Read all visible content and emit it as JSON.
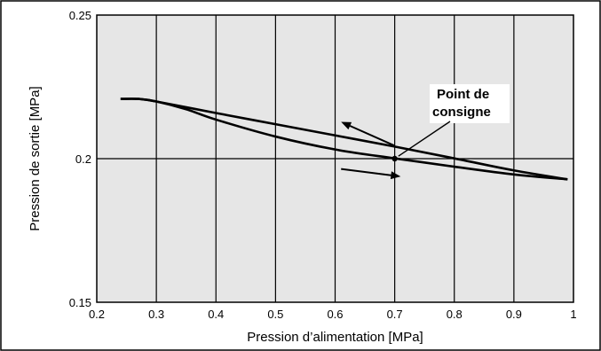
{
  "chart_data": {
    "type": "line",
    "xlabel": "Pression d’alimentation [MPa]",
    "ylabel": "Pression de sortie [MPa]",
    "xlim": [
      0.2,
      1.0
    ],
    "ylim": [
      0.15,
      0.25
    ],
    "x_ticks": [
      "0.2",
      "0.3",
      "0.4",
      "0.5",
      "0.6",
      "0.7",
      "0.8",
      "0.9",
      "1"
    ],
    "y_ticks": [
      "0.15",
      "0.2",
      "0.25"
    ],
    "grid": true,
    "series": [
      {
        "direction": "decreasing supply pressure",
        "x": [
          0.99,
          0.9,
          0.8,
          0.7,
          0.6,
          0.5,
          0.4,
          0.3,
          0.27,
          0.24
        ],
        "y": [
          0.1928,
          0.1959,
          0.2001,
          0.2042,
          0.2081,
          0.212,
          0.2159,
          0.2199,
          0.2208,
          0.2208
        ]
      },
      {
        "direction": "increasing supply pressure",
        "x": [
          0.24,
          0.27,
          0.3,
          0.35,
          0.4,
          0.5,
          0.6,
          0.7,
          0.8,
          0.9,
          0.99
        ],
        "y": [
          0.2208,
          0.2208,
          0.2199,
          0.2172,
          0.2136,
          0.2077,
          0.2032,
          0.2001,
          0.1972,
          0.1945,
          0.1928
        ]
      }
    ],
    "annotations": [
      {
        "text_line1": "Point de",
        "text_line2": "consigne",
        "x": 0.7,
        "y": 0.2
      }
    ],
    "arrows": [
      {
        "from": [
          0.7,
          0.2045
        ],
        "to": [
          0.61,
          0.2128
        ],
        "meaning": "decreasing"
      },
      {
        "from": [
          0.61,
          0.1964
        ],
        "to": [
          0.71,
          0.1938
        ],
        "meaning": "increasing"
      }
    ]
  }
}
